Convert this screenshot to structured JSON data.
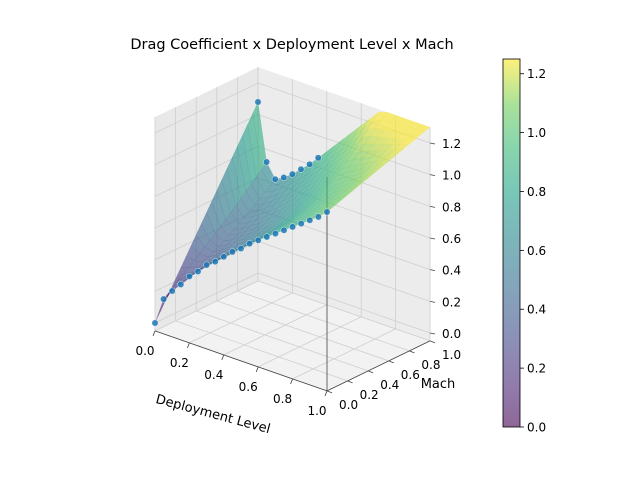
{
  "chart_data": {
    "type": "surface3d",
    "title": "Drag Coefficient x Deployment Level x Mach",
    "xlabel": "Deployment Level",
    "ylabel": "Mach",
    "zlabel": "",
    "xlim": [
      0.0,
      1.0
    ],
    "ylim": [
      0.0,
      1.0
    ],
    "zlim": [
      0.0,
      1.2
    ],
    "x_ticks": [
      "0.0",
      "0.2",
      "0.4",
      "0.6",
      "0.8",
      "1.0"
    ],
    "y_ticks": [
      "0.0",
      "0.2",
      "0.4",
      "0.6",
      "0.8",
      "1.0"
    ],
    "z_ticks": [
      "0.0",
      "0.2",
      "0.4",
      "0.6",
      "0.8",
      "1.0",
      "1.2"
    ],
    "grid": true,
    "colormap": "viridis",
    "surface_alpha": 0.6,
    "scatter_color": "#1f77b4",
    "colorbar": {
      "min": 0.0,
      "max": 1.25,
      "ticks": [
        "0.0",
        "0.2",
        "0.4",
        "0.6",
        "0.8",
        "1.0",
        "1.2"
      ]
    },
    "scatter_series": [
      {
        "mach": 0.0,
        "points": [
          {
            "x": 0.0,
            "z": 0.0
          },
          {
            "x": 0.05,
            "z": 0.17
          },
          {
            "x": 0.1,
            "z": 0.24
          },
          {
            "x": 0.15,
            "z": 0.3
          },
          {
            "x": 0.2,
            "z": 0.37
          },
          {
            "x": 0.25,
            "z": 0.42
          },
          {
            "x": 0.3,
            "z": 0.48
          },
          {
            "x": 0.35,
            "z": 0.52
          },
          {
            "x": 0.4,
            "z": 0.57
          },
          {
            "x": 0.45,
            "z": 0.62
          },
          {
            "x": 0.5,
            "z": 0.66
          },
          {
            "x": 0.55,
            "z": 0.71
          },
          {
            "x": 0.6,
            "z": 0.75
          },
          {
            "x": 0.65,
            "z": 0.79
          },
          {
            "x": 0.7,
            "z": 0.83
          },
          {
            "x": 0.75,
            "z": 0.87
          },
          {
            "x": 0.8,
            "z": 0.91
          },
          {
            "x": 0.85,
            "z": 0.95
          },
          {
            "x": 0.9,
            "z": 0.99
          },
          {
            "x": 0.95,
            "z": 1.03
          },
          {
            "x": 1.0,
            "z": 1.08
          }
        ]
      },
      {
        "mach": 1.0,
        "points": [
          {
            "x": 0.0,
            "z": 1.08
          },
          {
            "x": 0.05,
            "z": 0.72
          },
          {
            "x": 0.1,
            "z": 0.63
          },
          {
            "x": 0.15,
            "z": 0.66
          },
          {
            "x": 0.2,
            "z": 0.7
          },
          {
            "x": 0.25,
            "z": 0.75
          },
          {
            "x": 0.3,
            "z": 0.8
          },
          {
            "x": 0.35,
            "z": 0.86
          }
        ]
      }
    ]
  }
}
